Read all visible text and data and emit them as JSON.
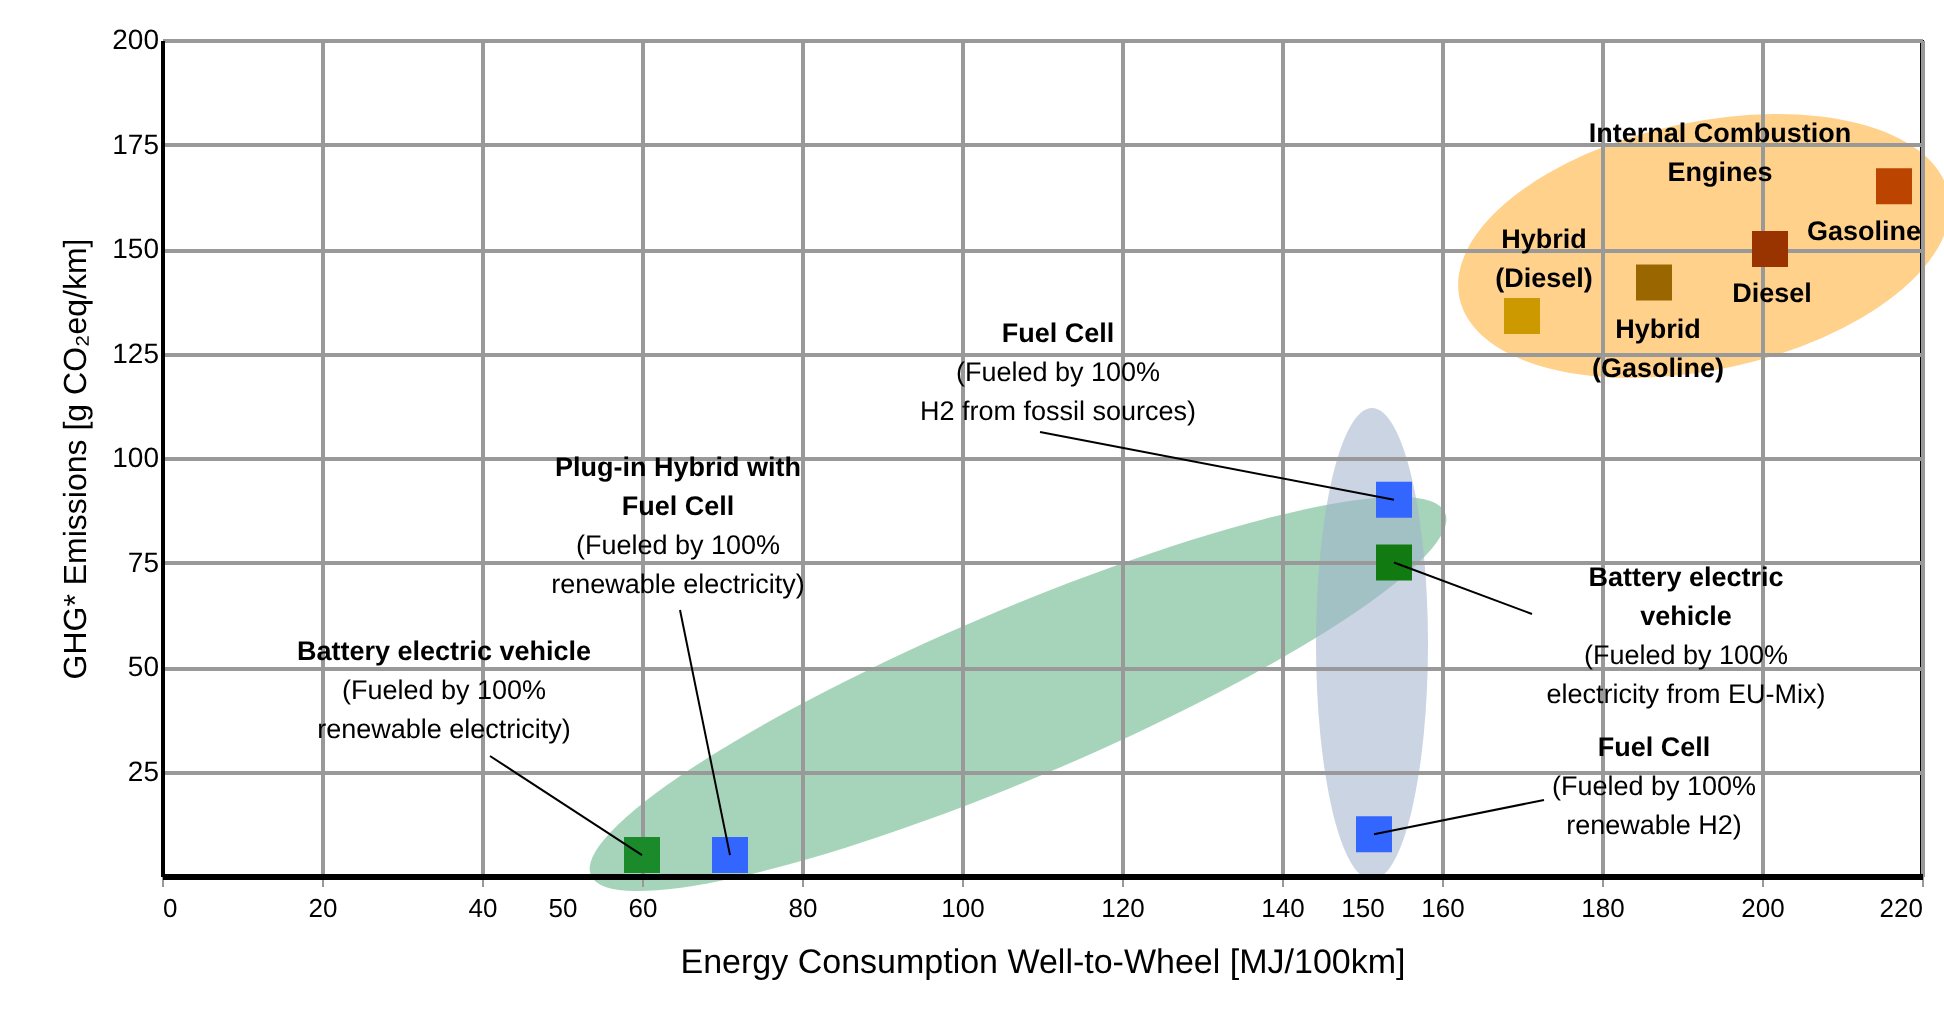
{
  "chart_data": {
    "type": "scatter",
    "xlabel": "Energy Consumption  Well-to-Wheel [MJ/100km]",
    "ylabel": "GHG* Emissions [g CO₂eq/km]",
    "x": [
      60,
      71,
      154,
      154,
      151.5,
      170,
      186.5,
      201,
      216.5
    ],
    "values": [
      5,
      5,
      90,
      75,
      10,
      134,
      142,
      150,
      165
    ],
    "colors": [
      "#1a8a2a",
      "#3366ff",
      "#3366ff",
      "#117a11",
      "#3366ff",
      "#cc9900",
      "#996600",
      "#993300",
      "#bb4400"
    ],
    "marker": "square",
    "xlim": [
      0,
      220
    ],
    "xticks": [
      0,
      20,
      40,
      50,
      60,
      80,
      100,
      120,
      140,
      150,
      160,
      180,
      200,
      220
    ],
    "ylim": [
      0,
      200
    ],
    "yticks": [
      25,
      50,
      75,
      100,
      125,
      150,
      175,
      200
    ],
    "grid": true,
    "annotations": [
      {
        "text": "Battery electric vehicle\n(Fueled by 100%\nrenewable electricity)",
        "x": 60,
        "y": 5
      },
      {
        "text": "Plug-in Hybrid with\nFuel Cell\n(Fueled by 100%\nrenewable electricity)",
        "x": 71,
        "y": 5
      },
      {
        "text": "Fuel Cell\n(Fueled by 100%\nH2 from fossil sources)",
        "x": 154,
        "y": 90
      },
      {
        "text": "Battery electric\nvehicle\n(Fueled by 100%\nelectricity from EU-Mix)",
        "x": 154,
        "y": 75
      },
      {
        "text": "Fuel Cell\n(Fueled by 100%\nrenewable H2)",
        "x": 151.5,
        "y": 10
      },
      {
        "text": "Hybrid\n(Diesel)",
        "x": 170,
        "y": 134
      },
      {
        "text": "Hybrid\n(Gasoline)",
        "x": 186.5,
        "y": 142
      },
      {
        "text": "Diesel",
        "x": 201,
        "y": 150
      },
      {
        "text": "Gasoline",
        "x": 216.5,
        "y": 165
      },
      "Internal Combustion\nEngines"
    ]
  }
}
